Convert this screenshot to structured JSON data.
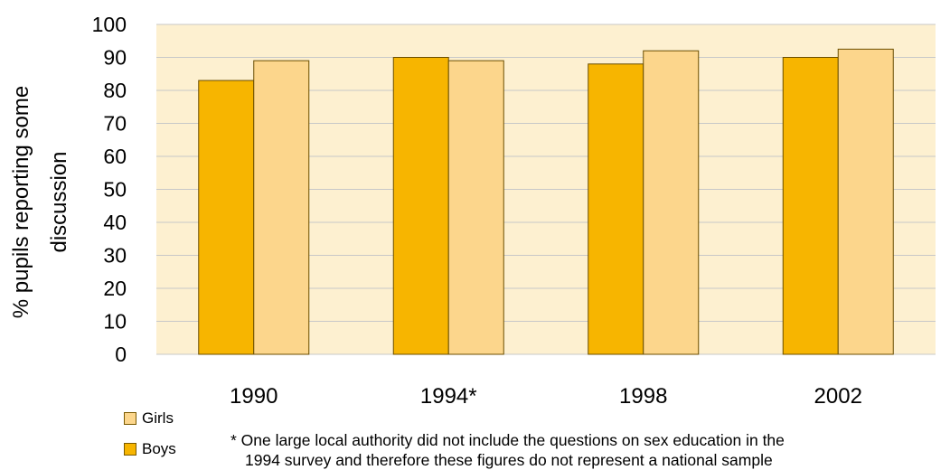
{
  "chart_data": {
    "type": "bar",
    "ylabel": "% pupils reporting some discussion",
    "ylim": [
      0,
      100
    ],
    "yticks": [
      0,
      10,
      20,
      30,
      40,
      50,
      60,
      70,
      80,
      90,
      100
    ],
    "categories": [
      "1990",
      "1994*",
      "1998",
      "2002"
    ],
    "series": [
      {
        "name": "Boys",
        "values": [
          83,
          90,
          88,
          90
        ],
        "color": "#F7B500"
      },
      {
        "name": "Girls",
        "values": [
          89,
          89,
          92,
          92.5
        ],
        "color": "#FCD68C"
      }
    ],
    "plot_background": "#FDF0D0",
    "grid": true,
    "legend_position": "bottom-left"
  },
  "legend": [
    {
      "label": "Girls",
      "color": "#FCD68C"
    },
    {
      "label": "Boys",
      "color": "#F7B500"
    }
  ],
  "footnote": {
    "line1": "* One large local authority did not include the questions on sex education in the",
    "line2": "1994 survey and therefore these figures do not represent a national sample"
  }
}
